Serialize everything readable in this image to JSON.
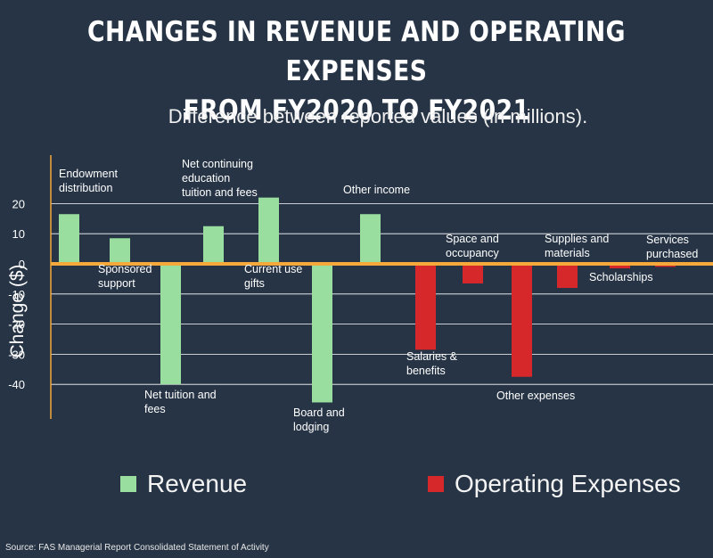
{
  "title_line1": "CHANGES IN REVENUE AND OPERATING EXPENSES",
  "title_line2": "FROM FY2020 TO FY2021",
  "subtitle": "Difference between reported values (in millions).",
  "source": "Source: FAS Managerial Report Consolidated Statement of Activity",
  "colors": {
    "background": "#263445",
    "revenue": "#99dd9f",
    "expenses": "#d6272a",
    "zero_line": "#f4a93a",
    "grid": "#ffffff"
  },
  "chart_data": {
    "type": "bar",
    "title": "CHANGES IN REVENUE AND OPERATING EXPENSES FROM FY2020 TO FY2021",
    "subtitle": "Difference between reported values (in millions).",
    "ylabel": "Change ($)",
    "xlabel": "",
    "ylim": [
      -50,
      35
    ],
    "yticks": [
      20,
      10,
      0,
      -10,
      -20,
      -30,
      -40
    ],
    "grid": true,
    "legend": [
      {
        "name": "Revenue",
        "color": "#99dd9f"
      },
      {
        "name": "Operating Expenses",
        "color": "#d6272a"
      }
    ],
    "categories": [
      {
        "label": [
          "Endowment",
          "distribution"
        ],
        "value": 16.5,
        "series": "Revenue"
      },
      {
        "label": [
          "Sponsored",
          "support"
        ],
        "value": 8.5,
        "series": "Revenue"
      },
      {
        "label": [
          "Net tuition and",
          "fees"
        ],
        "value": -40,
        "series": "Revenue"
      },
      {
        "label": [
          "Net continuing",
          "education",
          "tuition and fees"
        ],
        "value": 12.5,
        "series": "Revenue"
      },
      {
        "label": [
          "Current use",
          "gifts"
        ],
        "value": 22,
        "series": "Revenue"
      },
      {
        "label": [
          "Board and",
          "lodging"
        ],
        "value": -46,
        "series": "Revenue"
      },
      {
        "label": [
          "Other income"
        ],
        "value": 16.5,
        "series": "Revenue"
      },
      {
        "label": [
          "Salaries &",
          "benefits"
        ],
        "value": -28.5,
        "series": "Operating Expenses"
      },
      {
        "label": [
          "Space and",
          "occupancy"
        ],
        "value": -6.5,
        "series": "Operating Expenses"
      },
      {
        "label": [
          "Other expenses"
        ],
        "value": -37.5,
        "series": "Operating Expenses"
      },
      {
        "label": [
          "Supplies and",
          "materials"
        ],
        "value": -8,
        "series": "Operating Expenses"
      },
      {
        "label": [
          "Scholarships"
        ],
        "value": -1.5,
        "series": "Operating Expenses"
      },
      {
        "label": [
          "Services",
          "purchased"
        ],
        "value": -1,
        "series": "Operating Expenses"
      }
    ]
  }
}
